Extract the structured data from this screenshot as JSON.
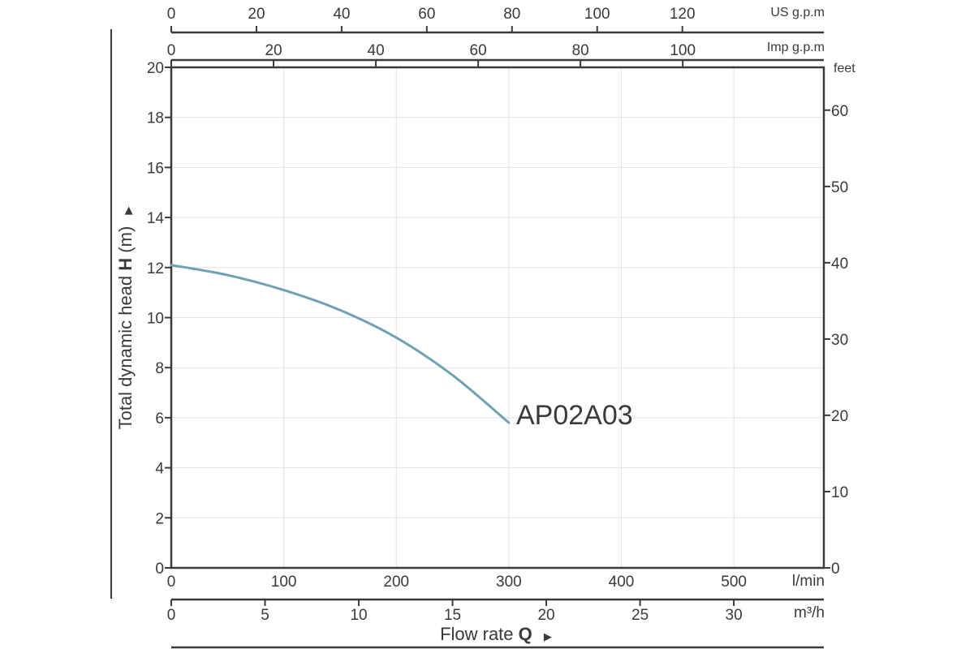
{
  "chart_data": {
    "type": "line",
    "title": "",
    "series": [
      {
        "name": "AP02A03",
        "x": [
          0,
          50,
          100,
          150,
          200,
          250,
          300
        ],
        "y": [
          12.1,
          11.7,
          11.1,
          10.3,
          9.2,
          7.7,
          5.8
        ]
      }
    ],
    "series_label": "AP02A03",
    "xlabel": "Flow rate",
    "xlabel_symbol": "Q",
    "ylabel": "Total dynamic head",
    "ylabel_symbol": "H",
    "ylabel_unit": "(m)",
    "xlim": [
      0,
      580
    ],
    "ylim": [
      0,
      20
    ],
    "grid": true,
    "axes": {
      "y_left": {
        "unit": "m",
        "ticks": [
          "0",
          "2",
          "4",
          "6",
          "8",
          "10",
          "12",
          "14",
          "16",
          "18",
          "20"
        ]
      },
      "y_right": {
        "unit": "feet",
        "ticks": [
          "0",
          "10",
          "20",
          "30",
          "40",
          "50",
          "60"
        ]
      },
      "x_bottom_lmin": {
        "unit": "l/min",
        "ticks": [
          "0",
          "100",
          "200",
          "300",
          "400",
          "500"
        ]
      },
      "x_bottom_m3h": {
        "unit": "m³/h",
        "ticks": [
          "0",
          "5",
          "10",
          "15",
          "20",
          "25",
          "30"
        ]
      },
      "x_top_usgpm": {
        "unit": "US g.p.m",
        "ticks": [
          "0",
          "20",
          "40",
          "60",
          "80",
          "100",
          "120"
        ]
      },
      "x_top_impgpm": {
        "unit": "Imp g.p.m",
        "ticks": [
          "0",
          "20",
          "40",
          "60",
          "80",
          "100"
        ]
      }
    }
  }
}
